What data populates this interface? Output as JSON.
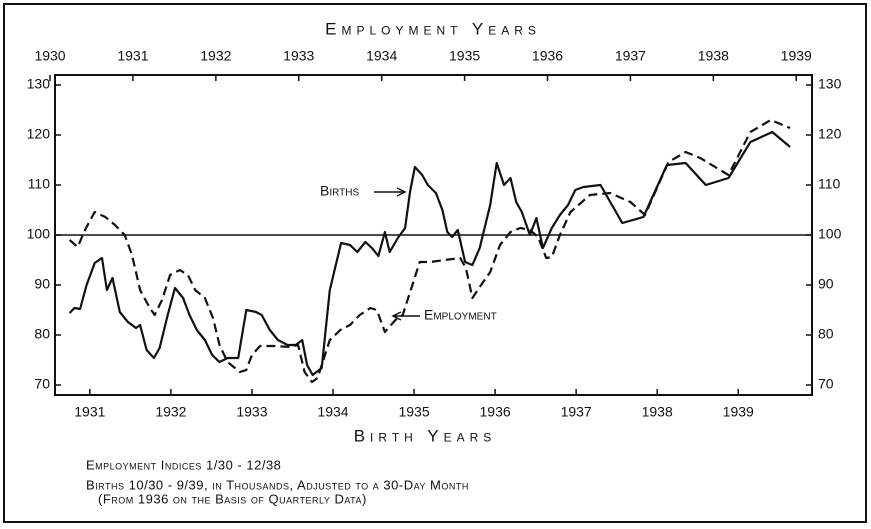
{
  "chart_data": {
    "type": "line",
    "x_label": "Birth Years",
    "x2_label": "Employment Years",
    "notes": [
      "Employment Indices 1/30 - 12/38",
      "Births 10/30 - 9/39, in Thousands, Adjusted to a 30-Day Month",
      "(From 1936 on the Basis of Quarterly Data)"
    ],
    "xlim": [
      1930.57,
      1939.91
    ],
    "xticks": [
      1931,
      1932,
      1933,
      1934,
      1935,
      1936,
      1937,
      1938,
      1939
    ],
    "x2lim": [
      1930.06,
      1939.19
    ],
    "x2ticks": [
      1930,
      1931,
      1932,
      1933,
      1934,
      1935,
      1936,
      1937,
      1938,
      1939
    ],
    "ylim": [
      68,
      132
    ],
    "yticks": [
      70,
      80,
      90,
      100,
      110,
      120,
      130
    ],
    "y2lim": [
      68,
      132
    ],
    "y2ticks": [
      70,
      80,
      90,
      100,
      110,
      120,
      130
    ],
    "reference_line": 100,
    "series": [
      {
        "name": "Births",
        "color": "#111111",
        "line_style": "solid",
        "x": [
          1930.75,
          1930.81,
          1930.88,
          1930.96,
          1931.06,
          1931.15,
          1931.21,
          1931.28,
          1931.37,
          1931.47,
          1931.57,
          1931.62,
          1931.7,
          1931.79,
          1931.86,
          1931.96,
          1932.05,
          1932.15,
          1932.23,
          1932.32,
          1932.42,
          1932.51,
          1932.6,
          1932.7,
          1932.83,
          1932.93,
          1933.05,
          1933.12,
          1933.22,
          1933.32,
          1933.44,
          1933.54,
          1933.62,
          1933.68,
          1933.75,
          1933.86,
          1933.96,
          1934.1,
          1934.21,
          1934.3,
          1934.4,
          1934.48,
          1934.56,
          1934.64,
          1934.7,
          1934.8,
          1934.89,
          1934.95,
          1935.01,
          1935.1,
          1935.17,
          1935.27,
          1935.35,
          1935.41,
          1935.47,
          1935.54,
          1935.63,
          1935.72,
          1935.81,
          1935.94,
          1936.02,
          1936.11,
          1936.19,
          1936.26,
          1936.33,
          1936.43,
          1936.51,
          1936.59,
          1936.7,
          1936.8,
          1936.9,
          1936.99,
          1937.09,
          1937.3,
          1937.57,
          1937.83,
          1938.12,
          1938.35,
          1938.6,
          1938.88,
          1939.15,
          1939.42,
          1939.64
        ],
        "values": [
          84.4,
          85.4,
          85.2,
          90,
          94.4,
          95.4,
          89,
          91.4,
          84.6,
          82.6,
          81.4,
          82,
          77,
          75.4,
          77.4,
          84,
          89.4,
          87.4,
          84,
          81,
          79,
          76,
          74.6,
          75.4,
          75.4,
          85,
          84.6,
          84,
          81,
          79,
          78,
          78,
          79,
          74,
          72,
          73.4,
          89,
          98.4,
          98,
          96.6,
          98.6,
          97.4,
          95.8,
          100.6,
          96.6,
          99.4,
          101.4,
          108.6,
          113.6,
          112,
          110,
          108.4,
          105,
          100.6,
          99.6,
          101,
          94.6,
          94,
          97.4,
          106,
          114.4,
          110,
          111.4,
          106.6,
          104.6,
          100,
          103.4,
          97.4,
          101.4,
          104,
          106,
          109,
          109.6,
          110,
          102.4,
          103.6,
          114,
          114.4,
          110,
          111.4,
          118.6,
          120.6,
          117.6
        ]
      },
      {
        "name": "Employment",
        "color": "#111111",
        "line_style": "dashed",
        "x": [
          1930.75,
          1930.85,
          1930.94,
          1931.06,
          1931.19,
          1931.31,
          1931.43,
          1931.52,
          1931.62,
          1931.74,
          1931.8,
          1931.89,
          1931.99,
          1932.11,
          1932.21,
          1932.3,
          1932.42,
          1932.52,
          1932.6,
          1932.7,
          1932.85,
          1932.93,
          1933.0,
          1933.1,
          1933.28,
          1933.47,
          1933.57,
          1933.65,
          1933.74,
          1933.81,
          1933.96,
          1934.09,
          1934.21,
          1934.33,
          1934.46,
          1934.54,
          1934.64,
          1934.77,
          1934.86,
          1934.98,
          1935.07,
          1935.2,
          1935.38,
          1935.57,
          1935.64,
          1935.72,
          1935.81,
          1935.94,
          1936.06,
          1936.19,
          1936.31,
          1936.43,
          1936.53,
          1936.63,
          1936.7,
          1936.8,
          1936.93,
          1937.17,
          1937.42,
          1937.67,
          1937.85,
          1938.14,
          1938.35,
          1938.53,
          1938.88,
          1939.15,
          1939.4,
          1939.64
        ],
        "values": [
          99,
          97.6,
          101,
          104.6,
          103.6,
          102,
          100,
          96,
          89,
          85.4,
          84,
          87,
          92,
          93,
          92,
          89,
          87.4,
          83.4,
          78,
          74.6,
          72.6,
          73,
          76,
          77.8,
          77.8,
          77.6,
          78,
          72.6,
          70.6,
          71.4,
          79,
          81,
          82,
          84,
          85.4,
          85,
          80.6,
          83,
          84,
          90,
          94.6,
          94.6,
          95,
          95.4,
          93.4,
          87.4,
          89.6,
          92.6,
          98,
          100.6,
          101.4,
          101,
          99.6,
          95.4,
          95.6,
          100,
          104.6,
          108,
          108.4,
          106.6,
          104,
          114.6,
          116.6,
          115.4,
          112,
          120.6,
          123,
          121.4
        ]
      }
    ]
  }
}
